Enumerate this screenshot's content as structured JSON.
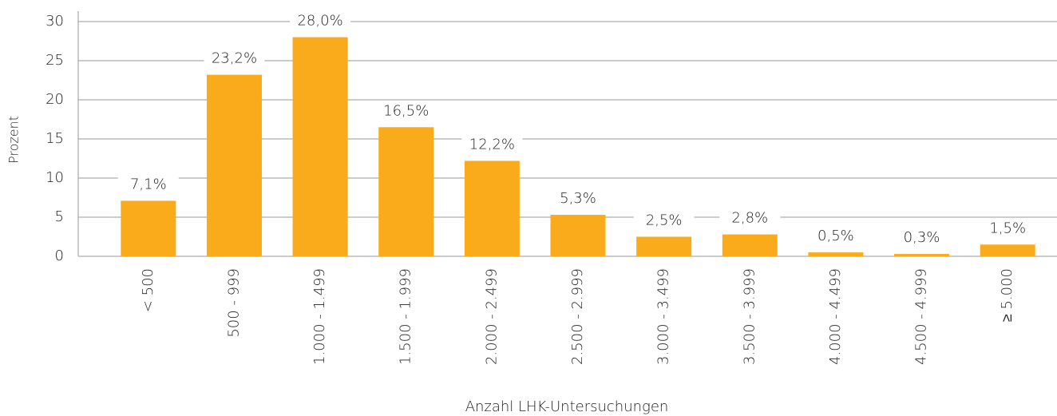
{
  "chart_data": {
    "type": "bar",
    "x_label": "Anzahl LHK-Untersuchungen",
    "y_label": "Prozent",
    "categories": [
      "< 500",
      "500 - 999",
      "1.000 - 1.499",
      "1.500 - 1.999",
      "2.000 - 2.499",
      "2.500 - 2.999",
      "3.000 - 3.499",
      "3.500 - 3.999",
      "4.000 - 4.499",
      "4.500 - 4.999",
      "≥ 5.000"
    ],
    "values": [
      7.1,
      23.2,
      28.0,
      16.5,
      12.2,
      5.3,
      2.5,
      2.8,
      0.5,
      0.3,
      1.5
    ],
    "value_labels": [
      "7,1%",
      "23,2%",
      "28,0%",
      "16,5%",
      "12,2%",
      "5,3%",
      "2,5%",
      "2,8%",
      "0,5%",
      "0,3%",
      "1,5%"
    ],
    "color": "#f9ab1c",
    "ylim": [
      0,
      30
    ],
    "yticks": [
      0,
      5,
      10,
      15,
      20,
      25,
      30
    ],
    "grid": true
  }
}
